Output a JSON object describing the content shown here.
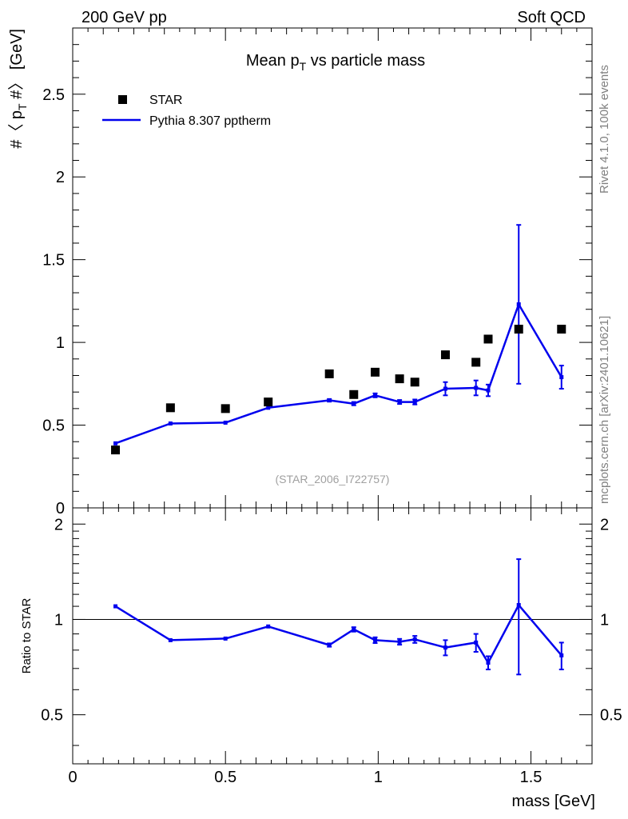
{
  "header": {
    "left_label": "200 GeV pp",
    "right_label": "Soft QCD"
  },
  "side_labels": {
    "rivet": "Rivet 4.1.0,  100k events",
    "mcplots": "mcplots.cern.ch [arXiv:2401.10621]"
  },
  "chart_data": [
    {
      "type": "scatter",
      "title": "Mean p_T vs particle mass",
      "title_parts": {
        "pre": "Mean p",
        "sub": "T",
        "post": " vs particle mass"
      },
      "ylabel": "#〈 p_T #〉 [GeV]",
      "ylabel_parts": {
        "pre": "#〈 p",
        "sub": "T",
        "post": " #〉 [GeV]"
      },
      "analysis_label": "(STAR_2006_I722757)",
      "xlim": [
        0,
        1.7
      ],
      "ylim": [
        0,
        2.9
      ],
      "y_ticks": [
        0,
        0.5,
        1,
        1.5,
        2,
        2.5
      ],
      "y_tick_labels": [
        "0",
        "0.5",
        "1",
        "1.5",
        "2",
        "2.5"
      ],
      "legend": [
        {
          "name": "STAR",
          "marker": "square",
          "color": "#000000"
        },
        {
          "name": "Pythia 8.307 pptherm",
          "marker": "line",
          "color": "#0000ee"
        }
      ],
      "series": [
        {
          "name": "STAR",
          "x": [
            0.14,
            0.32,
            0.5,
            0.64,
            0.84,
            0.92,
            0.99,
            1.07,
            1.12,
            1.22,
            1.32,
            1.36,
            1.46,
            1.6
          ],
          "y": [
            0.35,
            0.605,
            0.6,
            0.64,
            0.81,
            0.685,
            0.82,
            0.78,
            0.76,
            0.925,
            0.88,
            1.02,
            1.08,
            1.08
          ]
        },
        {
          "name": "Pythia 8.307 pptherm",
          "x": [
            0.14,
            0.32,
            0.5,
            0.64,
            0.84,
            0.92,
            0.99,
            1.07,
            1.12,
            1.22,
            1.32,
            1.36,
            1.46,
            1.6
          ],
          "y": [
            0.39,
            0.51,
            0.515,
            0.605,
            0.65,
            0.63,
            0.68,
            0.64,
            0.64,
            0.72,
            0.725,
            0.71,
            1.23,
            0.79
          ],
          "err": [
            0,
            0,
            0,
            0,
            0.008,
            0.01,
            0.012,
            0.012,
            0.015,
            0.04,
            0.045,
            0.035,
            0.48,
            0.07
          ]
        }
      ]
    },
    {
      "type": "line",
      "ylabel": "Ratio to STAR",
      "xlabel": "mass [GeV]",
      "xlim": [
        0,
        1.7
      ],
      "ylim": [
        0.35,
        2.25
      ],
      "x_ticks": [
        0,
        0.5,
        1,
        1.5
      ],
      "x_tick_labels": [
        "0",
        "0.5",
        "1",
        "1.5"
      ],
      "y_ticks": [
        0.5,
        1,
        2
      ],
      "y_tick_labels": [
        "0.5",
        "1",
        "2"
      ],
      "reference_line": 1,
      "series": [
        {
          "name": "Pythia 8.307 pptherm / STAR",
          "x": [
            0.14,
            0.32,
            0.5,
            0.64,
            0.84,
            0.92,
            0.99,
            1.07,
            1.12,
            1.22,
            1.32,
            1.36,
            1.46,
            1.6
          ],
          "y": [
            1.1,
            0.86,
            0.87,
            0.95,
            0.83,
            0.93,
            0.86,
            0.85,
            0.865,
            0.815,
            0.845,
            0.73,
            1.11,
            0.77
          ],
          "err": [
            0,
            0,
            0,
            0,
            0.01,
            0.015,
            0.018,
            0.018,
            0.022,
            0.045,
            0.055,
            0.035,
            0.44,
            0.075
          ]
        }
      ]
    }
  ]
}
